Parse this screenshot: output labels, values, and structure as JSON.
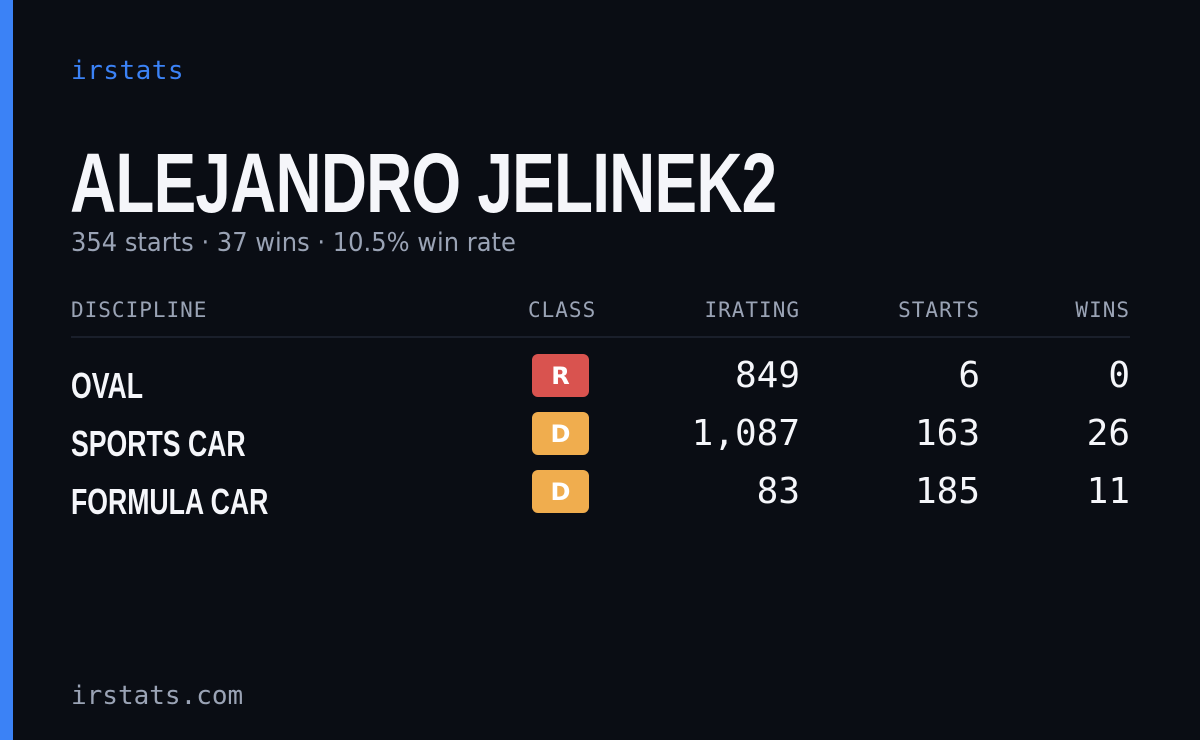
{
  "brand": "irstats",
  "player": {
    "name": "ALEJANDRO JELINEK2",
    "summary": "354 starts · 37 wins · 10.5% win rate"
  },
  "table": {
    "headers": {
      "discipline": "DISCIPLINE",
      "class": "CLASS",
      "irating": "IRATING",
      "starts": "STARTS",
      "wins": "WINS"
    },
    "rows": [
      {
        "discipline": "OVAL",
        "class": "R",
        "class_color": "#d9534f",
        "irating": "849",
        "starts": "6",
        "wins": "0"
      },
      {
        "discipline": "SPORTS CAR",
        "class": "D",
        "class_color": "#f0ad4e",
        "irating": "1,087",
        "starts": "163",
        "wins": "26"
      },
      {
        "discipline": "FORMULA CAR",
        "class": "D",
        "class_color": "#f0ad4e",
        "irating": "83",
        "starts": "185",
        "wins": "11"
      }
    ]
  },
  "footer": "irstats.com",
  "colors": {
    "accent": "#3b82f6",
    "background": "#0a0d14"
  }
}
